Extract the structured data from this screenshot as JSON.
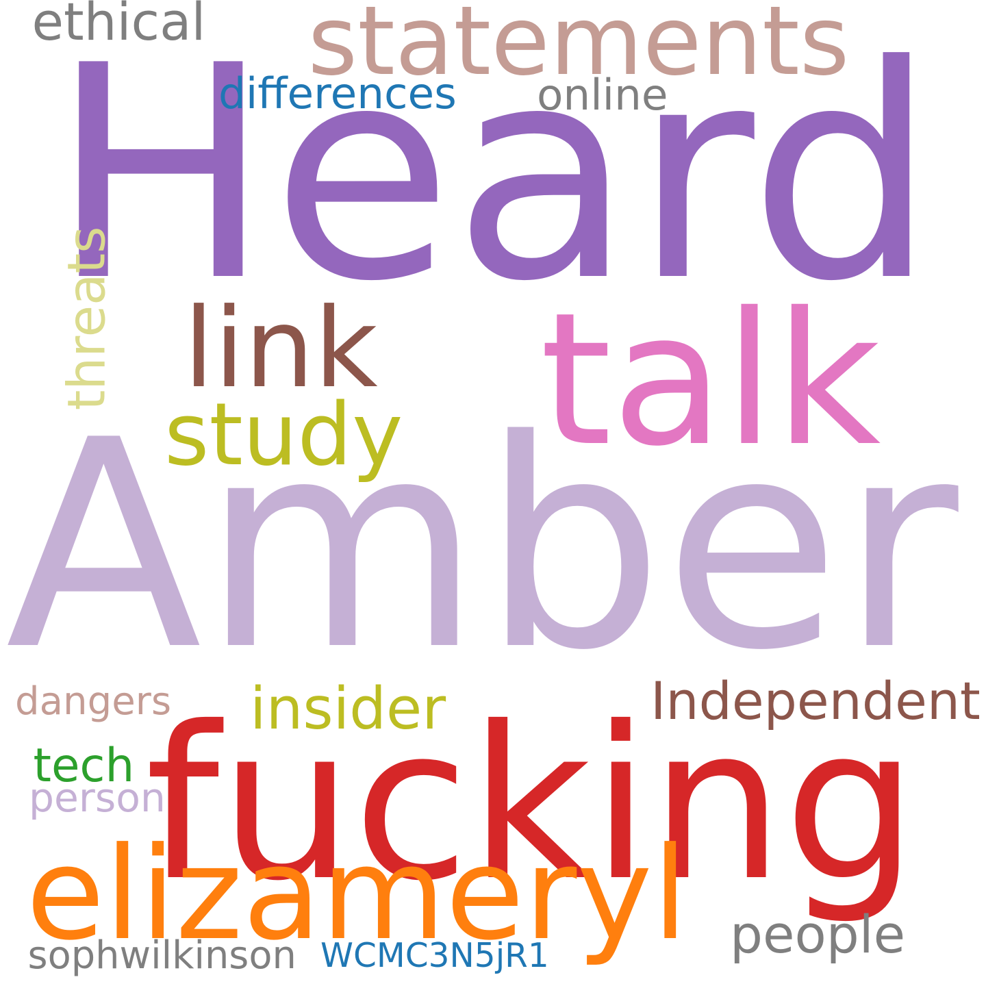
{
  "words": [
    {
      "id": "heard",
      "text": "Heard",
      "color": "#9467bd"
    },
    {
      "id": "amber",
      "text": "Amber",
      "color": "#c5b0d5"
    },
    {
      "id": "fucking",
      "text": "fucking",
      "color": "#d62728"
    },
    {
      "id": "talk",
      "text": "talk",
      "color": "#e377c2"
    },
    {
      "id": "statements",
      "text": "statements",
      "color": "#c49c94"
    },
    {
      "id": "elizameryl",
      "text": "elizameryl",
      "color": "#ff7f0e"
    },
    {
      "id": "link",
      "text": "link",
      "color": "#8c564b"
    },
    {
      "id": "study",
      "text": "study",
      "color": "#bcbd22"
    },
    {
      "id": "independent",
      "text": "Independent",
      "color": "#8c564b"
    },
    {
      "id": "insider",
      "text": "insider",
      "color": "#bcbd22"
    },
    {
      "id": "people",
      "text": "people",
      "color": "#7f7f7f"
    },
    {
      "id": "threats",
      "text": "threats",
      "color": "#dbdb8d"
    },
    {
      "id": "ethical",
      "text": "ethical",
      "color": "#7f7f7f"
    },
    {
      "id": "differences",
      "text": "differences",
      "color": "#1f77b4"
    },
    {
      "id": "online",
      "text": "online",
      "color": "#7f7f7f"
    },
    {
      "id": "tech",
      "text": "tech",
      "color": "#2ca02c"
    },
    {
      "id": "dangers",
      "text": "dangers",
      "color": "#c49c94"
    },
    {
      "id": "person",
      "text": "person",
      "color": "#c5b0d5"
    },
    {
      "id": "sophwilkinson",
      "text": "sophwilkinson",
      "color": "#7f7f7f"
    },
    {
      "id": "wcmc",
      "text": "WCMC3N5jR1",
      "color": "#1f77b4"
    }
  ]
}
